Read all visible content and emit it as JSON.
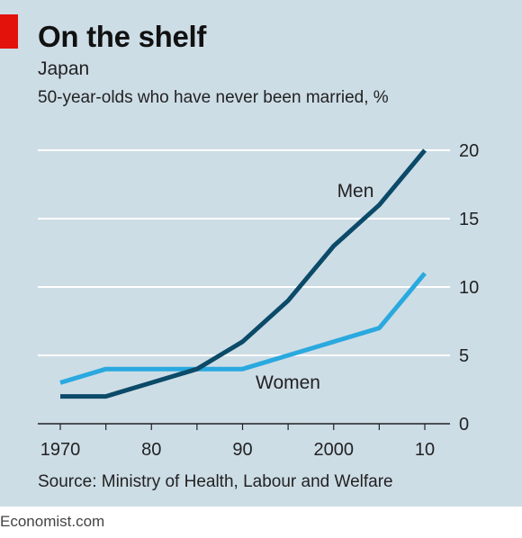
{
  "header": {
    "title": "On the shelf",
    "subtitle": "Japan",
    "description": "50-year-olds who have never been married, %"
  },
  "source": "Source: Ministry of Health, Labour and Welfare",
  "footer": "Economist.com",
  "colors": {
    "background": "#cddde6",
    "men": "#0b4a68",
    "women": "#2aa9df",
    "accent": "#e3120b",
    "grid": "#ffffff"
  },
  "chart_data": {
    "type": "line",
    "title": "On the shelf",
    "subtitle": "Japan",
    "ylabel": "50-year-olds who have never been married, %",
    "x": [
      1970,
      1975,
      1980,
      1985,
      1990,
      1995,
      2000,
      2005,
      2010
    ],
    "xlim": [
      1970,
      2010
    ],
    "ylim": [
      0,
      20
    ],
    "x_ticks": [
      {
        "value": 1970,
        "label": "1970"
      },
      {
        "value": 1980,
        "label": "80"
      },
      {
        "value": 1990,
        "label": "90"
      },
      {
        "value": 2000,
        "label": "2000"
      },
      {
        "value": 2010,
        "label": "10"
      }
    ],
    "y_ticks": [
      {
        "value": 0,
        "label": "0"
      },
      {
        "value": 5,
        "label": "5"
      },
      {
        "value": 10,
        "label": "10"
      },
      {
        "value": 15,
        "label": "15"
      },
      {
        "value": 20,
        "label": "20"
      }
    ],
    "grid": true,
    "series": [
      {
        "name": "Men",
        "color": "#0b4a68",
        "values": [
          2,
          2,
          3,
          4,
          6,
          9,
          13,
          16,
          20
        ]
      },
      {
        "name": "Women",
        "color": "#2aa9df",
        "values": [
          3,
          4,
          4,
          4,
          4,
          5,
          6,
          7,
          11
        ]
      }
    ],
    "annotations": [
      {
        "text": "Men",
        "series": "Men"
      },
      {
        "text": "Women",
        "series": "Women"
      }
    ]
  }
}
